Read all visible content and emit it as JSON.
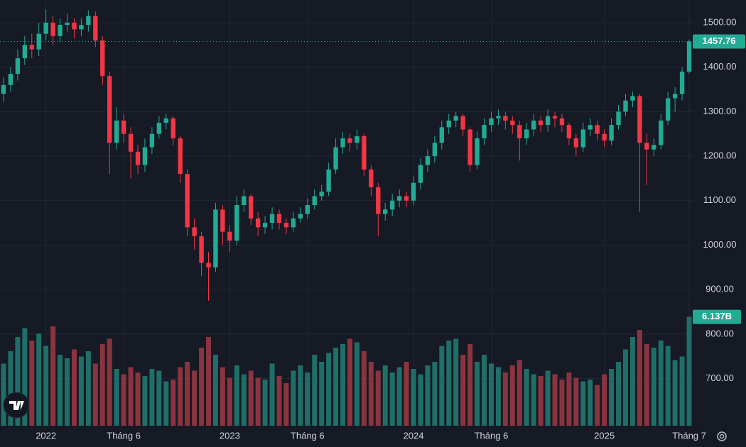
{
  "chart_data": {
    "type": "candlestick",
    "categories": [
      null,
      null,
      null,
      null,
      null,
      null,
      "2022",
      null,
      null,
      null,
      null,
      null,
      null,
      null,
      null,
      null,
      null,
      "Tháng 6",
      null,
      null,
      null,
      null,
      null,
      null,
      null,
      null,
      null,
      null,
      null,
      null,
      null,
      null,
      "2023",
      null,
      null,
      null,
      null,
      null,
      null,
      null,
      null,
      null,
      null,
      "Tháng 6",
      null,
      null,
      null,
      null,
      null,
      null,
      null,
      null,
      null,
      null,
      null,
      null,
      null,
      null,
      "2024",
      null,
      null,
      null,
      null,
      null,
      null,
      null,
      null,
      null,
      null,
      "Tháng 6",
      null,
      null,
      null,
      null,
      null,
      null,
      null,
      null,
      null,
      null,
      null,
      null,
      null,
      null,
      null,
      "2025",
      null,
      null,
      null,
      null,
      null,
      null,
      null,
      null,
      null,
      null,
      null,
      "Tháng 7"
    ],
    "open": [
      1340,
      1360,
      1385,
      1420,
      1450,
      1440,
      1475,
      1500,
      1470,
      1495,
      1500,
      1485,
      1495,
      1515,
      1460,
      1380,
      1230,
      1280,
      1250,
      1210,
      1180,
      1220,
      1250,
      1275,
      1285,
      1240,
      1160,
      1040,
      1020,
      960,
      950,
      1080,
      1030,
      1010,
      1090,
      1110,
      1060,
      1040,
      1050,
      1070,
      1050,
      1040,
      1060,
      1070,
      1090,
      1110,
      1120,
      1170,
      1220,
      1240,
      1230,
      1245,
      1170,
      1130,
      1070,
      1080,
      1100,
      1110,
      1100,
      1140,
      1180,
      1200,
      1230,
      1265,
      1280,
      1290,
      1260,
      1180,
      1240,
      1270,
      1285,
      1290,
      1280,
      1270,
      1240,
      1260,
      1280,
      1270,
      1290,
      1285,
      1270,
      1240,
      1220,
      1260,
      1270,
      1250,
      1235,
      1270,
      1300,
      1325,
      1335,
      1230,
      1215,
      1225,
      1280,
      1330,
      1340,
      1390
    ],
    "high": [
      1378,
      1400,
      1440,
      1470,
      1475,
      1500,
      1530,
      1515,
      1510,
      1520,
      1510,
      1510,
      1528,
      1525,
      1470,
      1390,
      1310,
      1295,
      1265,
      1225,
      1240,
      1265,
      1290,
      1295,
      1290,
      1245,
      1170,
      1060,
      1030,
      985,
      1095,
      1090,
      1045,
      1110,
      1125,
      1115,
      1075,
      1065,
      1085,
      1080,
      1060,
      1075,
      1085,
      1105,
      1125,
      1135,
      1185,
      1240,
      1255,
      1250,
      1260,
      1250,
      1180,
      1140,
      1095,
      1115,
      1125,
      1120,
      1155,
      1195,
      1215,
      1245,
      1280,
      1295,
      1300,
      1295,
      1265,
      1255,
      1285,
      1300,
      1305,
      1300,
      1290,
      1280,
      1275,
      1295,
      1290,
      1305,
      1300,
      1295,
      1275,
      1250,
      1275,
      1285,
      1280,
      1260,
      1285,
      1315,
      1340,
      1345,
      1340,
      1250,
      1240,
      1295,
      1345,
      1355,
      1400,
      1462
    ],
    "low": [
      1322,
      1345,
      1370,
      1405,
      1420,
      1425,
      1460,
      1450,
      1455,
      1480,
      1465,
      1470,
      1480,
      1445,
      1360,
      1160,
      1215,
      1230,
      1150,
      1160,
      1165,
      1205,
      1240,
      1260,
      1225,
      1140,
      1020,
      990,
      930,
      875,
      940,
      1000,
      985,
      1000,
      1075,
      1045,
      1020,
      1025,
      1035,
      1035,
      1025,
      1030,
      1050,
      1060,
      1080,
      1100,
      1110,
      1160,
      1205,
      1210,
      1215,
      1155,
      1110,
      1020,
      1055,
      1065,
      1085,
      1085,
      1090,
      1125,
      1165,
      1185,
      1215,
      1250,
      1265,
      1245,
      1165,
      1170,
      1225,
      1255,
      1270,
      1260,
      1250,
      1190,
      1225,
      1245,
      1255,
      1255,
      1265,
      1255,
      1225,
      1200,
      1210,
      1245,
      1235,
      1220,
      1225,
      1260,
      1290,
      1310,
      1075,
      1135,
      1200,
      1215,
      1270,
      1300,
      1325,
      1385
    ],
    "close": [
      1360,
      1385,
      1420,
      1450,
      1440,
      1475,
      1500,
      1470,
      1495,
      1500,
      1485,
      1495,
      1515,
      1460,
      1380,
      1230,
      1280,
      1250,
      1210,
      1180,
      1220,
      1250,
      1275,
      1285,
      1240,
      1160,
      1040,
      1020,
      960,
      950,
      1080,
      1030,
      1010,
      1090,
      1110,
      1060,
      1040,
      1050,
      1070,
      1050,
      1040,
      1060,
      1070,
      1090,
      1110,
      1120,
      1170,
      1220,
      1240,
      1230,
      1245,
      1170,
      1130,
      1070,
      1080,
      1100,
      1110,
      1100,
      1140,
      1180,
      1200,
      1230,
      1265,
      1280,
      1290,
      1260,
      1180,
      1240,
      1270,
      1285,
      1290,
      1280,
      1270,
      1240,
      1260,
      1280,
      1270,
      1290,
      1285,
      1270,
      1240,
      1220,
      1260,
      1270,
      1250,
      1235,
      1270,
      1300,
      1325,
      1335,
      1230,
      1215,
      1225,
      1280,
      1330,
      1340,
      1390,
      1457.76
    ],
    "volume": {
      "values": [
        3.5,
        4.2,
        5.0,
        5.5,
        4.8,
        5.2,
        4.5,
        5.6,
        4.0,
        3.8,
        4.3,
        3.9,
        4.2,
        3.5,
        4.6,
        4.9,
        3.2,
        2.9,
        3.3,
        3.0,
        2.8,
        3.2,
        3.1,
        2.5,
        2.6,
        3.3,
        3.6,
        3.1,
        4.4,
        5.0,
        4.0,
        3.3,
        2.7,
        3.4,
        2.9,
        3.1,
        2.7,
        2.6,
        3.5,
        2.8,
        2.4,
        3.1,
        3.4,
        3.0,
        4.0,
        3.6,
        4.1,
        4.4,
        4.6,
        4.9,
        4.7,
        4.2,
        3.6,
        3.1,
        3.4,
        3.0,
        3.3,
        3.6,
        3.2,
        2.9,
        3.4,
        3.6,
        4.5,
        4.8,
        4.9,
        4.0,
        4.6,
        3.6,
        4.0,
        3.5,
        3.3,
        3.0,
        3.4,
        3.7,
        3.2,
        2.9,
        2.8,
        3.1,
        2.9,
        2.6,
        3.0,
        2.7,
        2.5,
        2.6,
        2.3,
        2.9,
        3.2,
        3.6,
        4.3,
        5.0,
        5.4,
        4.6,
        4.4,
        4.8,
        4.5,
        3.7,
        3.9,
        6.137
      ],
      "value_labels": [
        null,
        null,
        null,
        null,
        null,
        null,
        null,
        null,
        null,
        null,
        null,
        null,
        null,
        null,
        null,
        null,
        null,
        null,
        null,
        null,
        null,
        null,
        null,
        null,
        null,
        null,
        null,
        null,
        null,
        null,
        null,
        null,
        null,
        null,
        null,
        null,
        null,
        null,
        null,
        null,
        null,
        null,
        null,
        null,
        null,
        null,
        null,
        null,
        null,
        null,
        null,
        null,
        null,
        null,
        null,
        null,
        null,
        null,
        null,
        null,
        null,
        null,
        null,
        null,
        null,
        null,
        null,
        null,
        null,
        null,
        null,
        null,
        null,
        null,
        null,
        null,
        null,
        null,
        null,
        null,
        null,
        null,
        null,
        null,
        null,
        null,
        null,
        null,
        null,
        null,
        null,
        null,
        null,
        null,
        null,
        null,
        null,
        "6.137B"
      ],
      "ylim": [
        0,
        24
      ],
      "up_color": "#1f6f68",
      "down_color": "#8a3440"
    },
    "ylim": [
      594,
      1551
    ],
    "yticks": [
      {
        "value": 700,
        "label": "700.00"
      },
      {
        "value": 800,
        "label": "800.00"
      },
      {
        "value": 900,
        "label": "900.00"
      },
      {
        "value": 1000,
        "label": "1000.00"
      },
      {
        "value": 1100,
        "label": "1100.00"
      },
      {
        "value": 1200,
        "label": "1200.00"
      },
      {
        "value": 1300,
        "label": "1300.00"
      },
      {
        "value": 1400,
        "label": "1400.00"
      },
      {
        "value": 1500,
        "label": "1500.00"
      }
    ],
    "grid": true,
    "up_color": "#22ab94",
    "down_color": "#f23645"
  }
}
